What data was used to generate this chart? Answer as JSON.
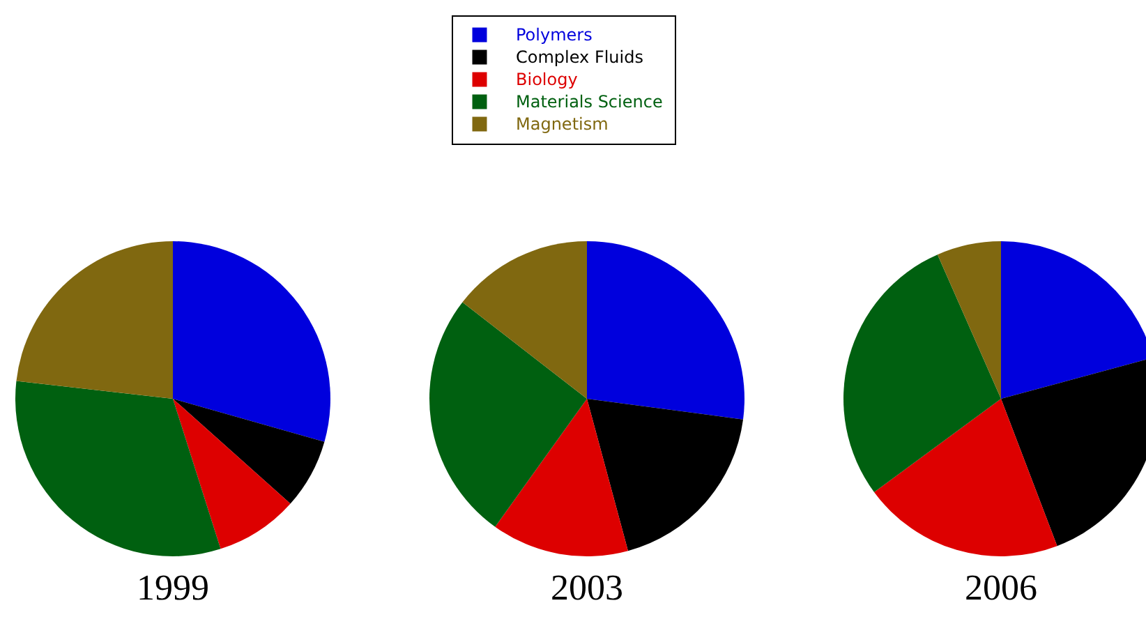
{
  "chart_data": [
    {
      "type": "pie",
      "title": "1999",
      "legend": "top",
      "categories": [
        "Polymers",
        "Complex Fluids",
        "Biology",
        "Materials Science",
        "Magnetism"
      ],
      "values": [
        29.4,
        7.2,
        8.5,
        31.7,
        23.2
      ],
      "colors": [
        "#0000dd",
        "#000000",
        "#dd0000",
        "#006010",
        "#806810"
      ]
    },
    {
      "type": "pie",
      "title": "2003",
      "values": [
        27.1,
        18.7,
        14.1,
        25.6,
        14.5
      ]
    },
    {
      "type": "pie",
      "title": "2006",
      "values": [
        20.8,
        23.4,
        20.7,
        28.5,
        6.6
      ]
    }
  ]
}
